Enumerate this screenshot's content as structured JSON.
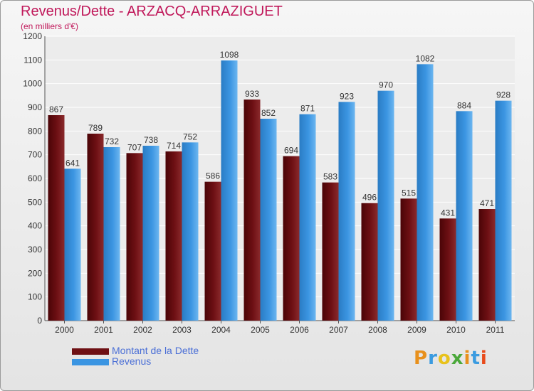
{
  "header": {
    "title": "Revenus/Dette - ARZACQ-ARRAZIGUET",
    "subtitle": "(en milliers d'€)"
  },
  "colors": {
    "title": "#c0185a",
    "dette": "#6e1014",
    "revenus": "#3b95e2",
    "legend_text": "#4b6fd6"
  },
  "chart_data": {
    "type": "bar",
    "title": "Revenus/Dette - ARZACQ-ARRAZIGUET",
    "ylabel": "(en milliers d'€)",
    "categories": [
      "2000",
      "2001",
      "2002",
      "2003",
      "2004",
      "2005",
      "2006",
      "2007",
      "2008",
      "2009",
      "2010",
      "2011"
    ],
    "series": [
      {
        "name": "Montant de la Dette",
        "values": [
          867,
          789,
          707,
          714,
          586,
          933,
          694,
          583,
          496,
          515,
          431,
          471
        ]
      },
      {
        "name": "Revenus",
        "values": [
          641,
          732,
          738,
          752,
          1098,
          852,
          871,
          923,
          970,
          1082,
          884,
          928
        ]
      }
    ],
    "ylim": [
      0,
      1200
    ],
    "yticks": [
      0,
      100,
      200,
      300,
      400,
      500,
      600,
      700,
      800,
      900,
      1000,
      1100,
      1200
    ],
    "grid": true,
    "legend_position": "bottom-left"
  },
  "legend": {
    "items": [
      "Montant de la Dette",
      "Revenus"
    ]
  },
  "logo": {
    "letters": [
      "P",
      "r",
      "o",
      "x",
      "i",
      "t",
      "i"
    ],
    "letter_colors": [
      "#e8901c",
      "#3a9be0",
      "#e8c21c",
      "#4aa83a",
      "#e8901c",
      "#3a9be0",
      "#e84b1c"
    ]
  }
}
